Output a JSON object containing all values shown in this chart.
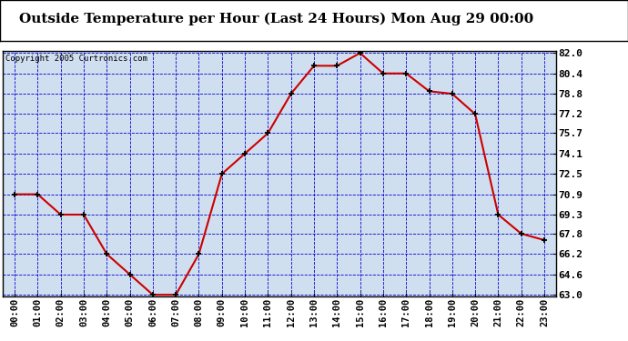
{
  "title": "Outside Temperature per Hour (Last 24 Hours) Mon Aug 29 00:00",
  "copyright": "Copyright 2005 Curtronics.com",
  "hours": [
    "00:00",
    "01:00",
    "02:00",
    "03:00",
    "04:00",
    "05:00",
    "06:00",
    "07:00",
    "08:00",
    "09:00",
    "10:00",
    "11:00",
    "12:00",
    "13:00",
    "14:00",
    "15:00",
    "16:00",
    "17:00",
    "18:00",
    "19:00",
    "20:00",
    "21:00",
    "22:00",
    "23:00"
  ],
  "temperatures": [
    70.9,
    70.9,
    69.3,
    69.3,
    66.2,
    64.6,
    63.0,
    63.0,
    66.2,
    72.5,
    74.1,
    75.7,
    78.8,
    81.0,
    81.0,
    82.0,
    80.4,
    80.4,
    79.0,
    78.8,
    77.2,
    69.3,
    67.8,
    67.3
  ],
  "line_color": "#cc0000",
  "marker_color": "#000000",
  "bg_color": "#ffffff",
  "plot_bg_color": "#d0dff0",
  "grid_color": "#0000cc",
  "title_color": "#000000",
  "border_color": "#000000",
  "ylim_min": 63.0,
  "ylim_max": 82.0,
  "yticks": [
    63.0,
    64.6,
    66.2,
    67.8,
    69.3,
    70.9,
    72.5,
    74.1,
    75.7,
    77.2,
    78.8,
    80.4,
    82.0
  ],
  "title_fontsize": 11,
  "copyright_fontsize": 6.5,
  "tick_fontsize": 7.5,
  "ytick_fontsize": 8.0
}
